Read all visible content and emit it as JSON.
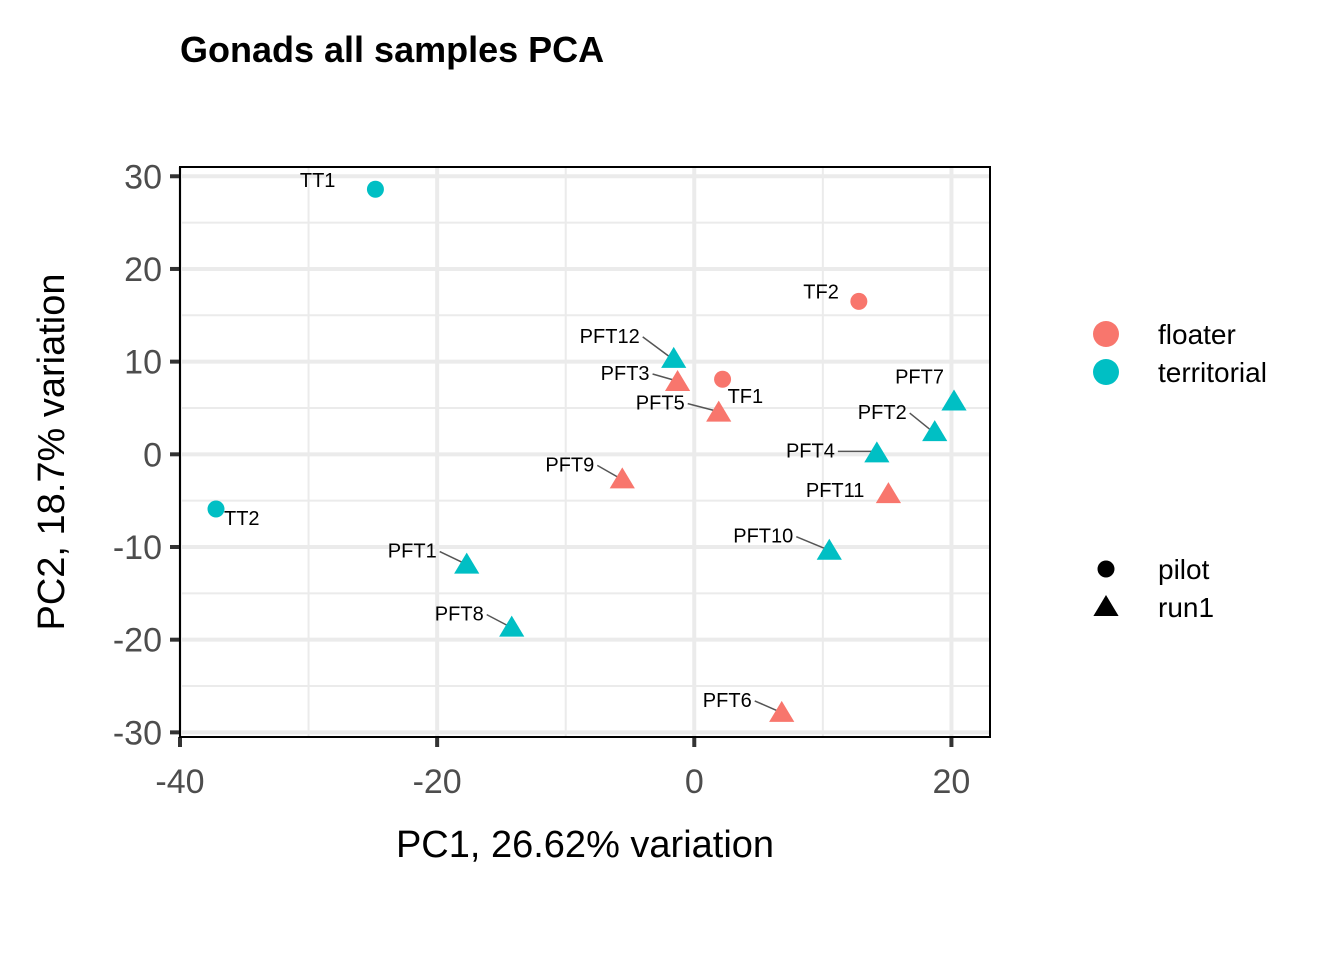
{
  "chart_data": {
    "type": "scatter",
    "title": "Gonads all samples PCA",
    "xlabel": "PC1, 26.62% variation",
    "ylabel": "PC2, 18.7% variation",
    "xlim": [
      -40,
      23
    ],
    "ylim": [
      -30.5,
      31
    ],
    "xticks": [
      -40,
      -20,
      0,
      20
    ],
    "xtick_labels": [
      "-40",
      "-20",
      "0",
      "20"
    ],
    "yticks": [
      -30,
      -20,
      -10,
      0,
      10,
      20,
      30
    ],
    "ytick_labels": [
      "-30",
      "-20",
      "-10",
      "0",
      "10",
      "20",
      "30"
    ],
    "grid": true,
    "legend_position": "right",
    "color_legend": [
      {
        "label": "floater",
        "color": "#F8766D"
      },
      {
        "label": "territorial",
        "color": "#00BFC4"
      }
    ],
    "shape_legend": [
      {
        "label": "pilot",
        "shape": "circle"
      },
      {
        "label": "run1",
        "shape": "triangle"
      }
    ],
    "points": [
      {
        "label": "TT1",
        "x": -24.8,
        "y": 28.6,
        "group": "territorial",
        "batch": "pilot"
      },
      {
        "label": "TT2",
        "x": -37.2,
        "y": -5.9,
        "group": "territorial",
        "batch": "pilot"
      },
      {
        "label": "TF2",
        "x": 12.8,
        "y": 16.5,
        "group": "floater",
        "batch": "pilot"
      },
      {
        "label": "TF1",
        "x": 2.2,
        "y": 8.1,
        "group": "floater",
        "batch": "pilot"
      },
      {
        "label": "PFT12",
        "x": -1.6,
        "y": 10.3,
        "group": "territorial",
        "batch": "run1"
      },
      {
        "label": "PFT3",
        "x": -1.3,
        "y": 7.8,
        "group": "floater",
        "batch": "run1"
      },
      {
        "label": "PFT5",
        "x": 1.9,
        "y": 4.5,
        "group": "floater",
        "batch": "run1"
      },
      {
        "label": "PFT7",
        "x": 20.2,
        "y": 5.7,
        "group": "territorial",
        "batch": "run1"
      },
      {
        "label": "PFT2",
        "x": 18.7,
        "y": 2.4,
        "group": "territorial",
        "batch": "run1"
      },
      {
        "label": "PFT4",
        "x": 14.2,
        "y": 0.1,
        "group": "territorial",
        "batch": "run1"
      },
      {
        "label": "PFT9",
        "x": -5.6,
        "y": -2.7,
        "group": "floater",
        "batch": "run1"
      },
      {
        "label": "PFT11",
        "x": 15.1,
        "y": -4.3,
        "group": "floater",
        "batch": "run1"
      },
      {
        "label": "PFT10",
        "x": 10.5,
        "y": -10.4,
        "group": "territorial",
        "batch": "run1"
      },
      {
        "label": "PFT1",
        "x": -17.7,
        "y": -11.9,
        "group": "territorial",
        "batch": "run1"
      },
      {
        "label": "PFT8",
        "x": -14.2,
        "y": -18.7,
        "group": "territorial",
        "batch": "run1"
      },
      {
        "label": "PFT6",
        "x": 6.8,
        "y": -27.9,
        "group": "floater",
        "batch": "run1"
      }
    ]
  }
}
